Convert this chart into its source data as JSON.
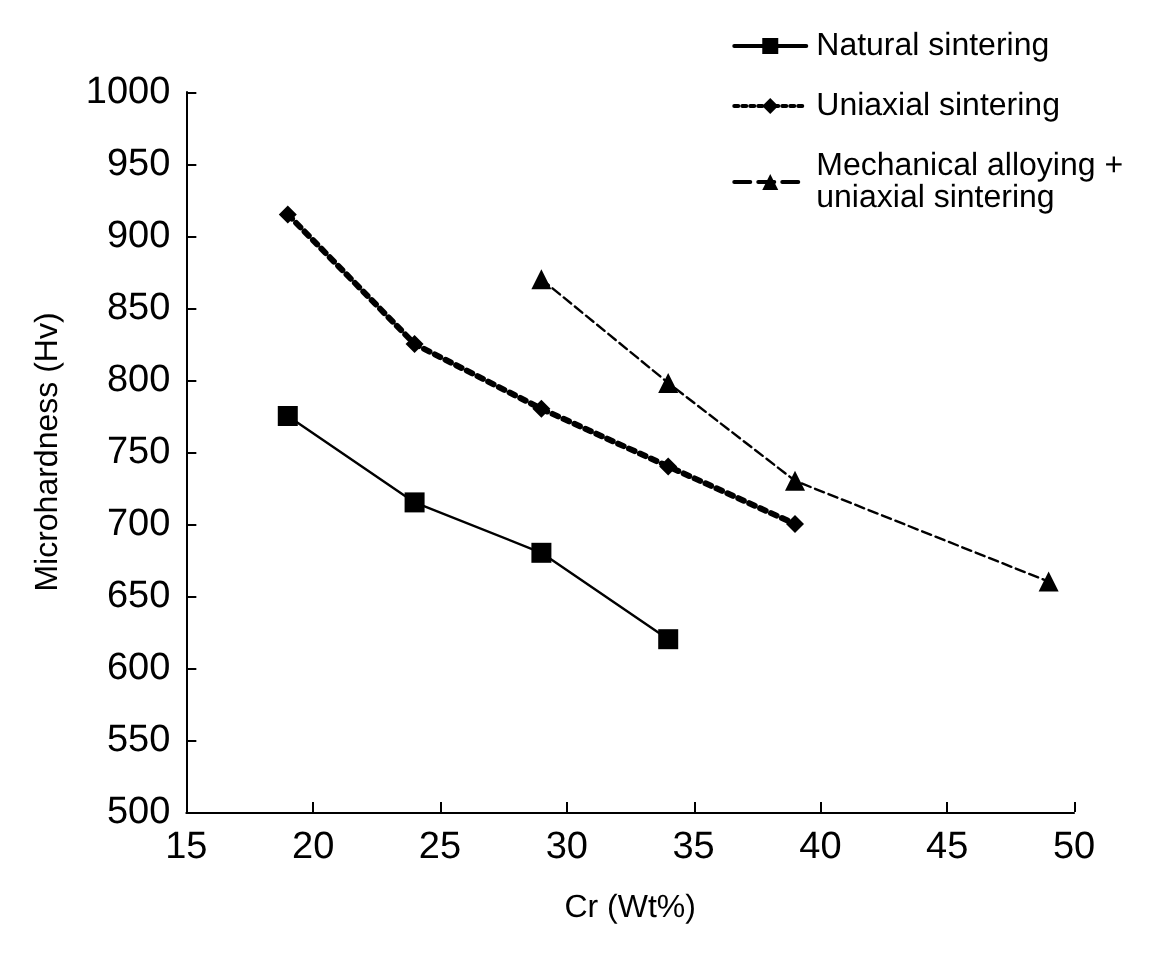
{
  "chart_data": {
    "type": "line",
    "xlabel": "Cr (Wt%)",
    "ylabel": "Microhardness (Hv)",
    "xlim": [
      15,
      50
    ],
    "xticks": [
      15,
      20,
      25,
      30,
      35,
      40,
      45,
      50
    ],
    "ylim": [
      500,
      1000
    ],
    "yticks": [
      500,
      550,
      600,
      650,
      700,
      750,
      800,
      850,
      900,
      950,
      1000
    ],
    "grid": false,
    "legend": "top right",
    "series": [
      {
        "name": "Natural sintering",
        "color": "#000000",
        "marker": "square",
        "line_style": "solid",
        "x": [
          19,
          24,
          29,
          34
        ],
        "values": [
          775,
          715,
          680,
          620
        ]
      },
      {
        "name": "Uniaxial sintering",
        "color": "#000000",
        "marker": "diamond",
        "line_style": "dotted",
        "x": [
          19,
          24,
          29,
          34,
          39
        ],
        "values": [
          915,
          825,
          780,
          740,
          700
        ]
      },
      {
        "name": "Mechanical alloying + uniaxial sintering",
        "color": "#000000",
        "marker": "triangle",
        "line_style": "dashed",
        "x": [
          29,
          34,
          39,
          49
        ],
        "values": [
          870,
          798,
          730,
          660
        ]
      }
    ]
  }
}
